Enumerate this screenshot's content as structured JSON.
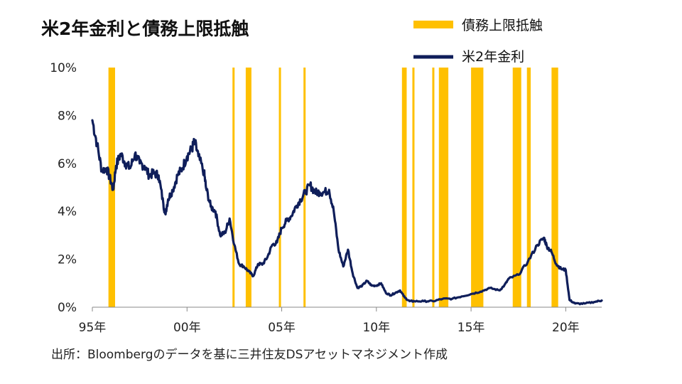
{
  "chart_data": {
    "type": "line",
    "title": "米2年金利と債務上限抵触",
    "legend": [
      {
        "name": "債務上限抵触",
        "kind": "band",
        "color": "#FFC000"
      },
      {
        "name": "米2年金利",
        "kind": "line",
        "color": "#0F1E5A"
      }
    ],
    "legend_position": "top-right",
    "source": "出所：Bloombergのデータを基に三井住友DSアセットマネジメント作成",
    "x_range": [
      1995.0,
      2021.9
    ],
    "x_ticks": [
      {
        "value": 1995,
        "label": "95年"
      },
      {
        "value": 2000,
        "label": "00年"
      },
      {
        "value": 2005,
        "label": "05年"
      },
      {
        "value": 2010,
        "label": "10年"
      },
      {
        "value": 2015,
        "label": "15年"
      },
      {
        "value": 2020,
        "label": "20年"
      }
    ],
    "y_range": [
      0,
      10
    ],
    "y_ticks": [
      {
        "value": 0,
        "label": "0%"
      },
      {
        "value": 2,
        "label": "2%"
      },
      {
        "value": 4,
        "label": "4%"
      },
      {
        "value": 6,
        "label": "6%"
      },
      {
        "value": 8,
        "label": "8%"
      },
      {
        "value": 10,
        "label": "10%"
      }
    ],
    "grid": false,
    "debt_ceiling_periods": [
      [
        1995.85,
        1996.2
      ],
      [
        2002.4,
        2002.5
      ],
      [
        2003.1,
        2003.4
      ],
      [
        2004.85,
        2004.95
      ],
      [
        2006.15,
        2006.25
      ],
      [
        2011.35,
        2011.6
      ],
      [
        2011.9,
        2011.95
      ],
      [
        2012.95,
        2013.05
      ],
      [
        2013.3,
        2013.8
      ],
      [
        2015.0,
        2015.65
      ],
      [
        2017.2,
        2017.65
      ],
      [
        2017.95,
        2018.15
      ],
      [
        2019.25,
        2019.6
      ]
    ],
    "series": [
      {
        "name": "米2年金利",
        "unit": "%",
        "points": [
          [
            1995.0,
            7.8
          ],
          [
            1995.25,
            6.8
          ],
          [
            1995.5,
            5.7
          ],
          [
            1995.75,
            5.8
          ],
          [
            1996.0,
            5.2
          ],
          [
            1996.1,
            4.9
          ],
          [
            1996.25,
            5.9
          ],
          [
            1996.5,
            6.4
          ],
          [
            1996.75,
            6.0
          ],
          [
            1997.0,
            5.8
          ],
          [
            1997.25,
            6.4
          ],
          [
            1997.5,
            6.0
          ],
          [
            1997.75,
            5.9
          ],
          [
            1998.0,
            5.5
          ],
          [
            1998.25,
            5.6
          ],
          [
            1998.5,
            5.5
          ],
          [
            1998.75,
            4.3
          ],
          [
            1998.85,
            3.9
          ],
          [
            1999.0,
            4.5
          ],
          [
            1999.25,
            4.9
          ],
          [
            1999.5,
            5.5
          ],
          [
            1999.75,
            5.8
          ],
          [
            2000.0,
            6.3
          ],
          [
            2000.25,
            6.6
          ],
          [
            2000.4,
            6.9
          ],
          [
            2000.6,
            6.3
          ],
          [
            2000.9,
            5.6
          ],
          [
            2001.0,
            5.0
          ],
          [
            2001.25,
            4.2
          ],
          [
            2001.5,
            4.0
          ],
          [
            2001.75,
            3.0
          ],
          [
            2002.0,
            3.1
          ],
          [
            2002.25,
            3.7
          ],
          [
            2002.5,
            2.6
          ],
          [
            2002.75,
            1.8
          ],
          [
            2003.0,
            1.7
          ],
          [
            2003.25,
            1.5
          ],
          [
            2003.5,
            1.3
          ],
          [
            2003.75,
            1.8
          ],
          [
            2004.0,
            1.8
          ],
          [
            2004.25,
            2.1
          ],
          [
            2004.5,
            2.6
          ],
          [
            2004.75,
            2.7
          ],
          [
            2005.0,
            3.3
          ],
          [
            2005.25,
            3.6
          ],
          [
            2005.5,
            3.8
          ],
          [
            2005.75,
            4.2
          ],
          [
            2006.0,
            4.5
          ],
          [
            2006.25,
            4.8
          ],
          [
            2006.5,
            5.1
          ],
          [
            2006.75,
            4.8
          ],
          [
            2007.0,
            4.8
          ],
          [
            2007.25,
            4.8
          ],
          [
            2007.5,
            4.9
          ],
          [
            2007.75,
            4.0
          ],
          [
            2008.0,
            2.4
          ],
          [
            2008.25,
            1.7
          ],
          [
            2008.5,
            2.4
          ],
          [
            2008.75,
            1.4
          ],
          [
            2009.0,
            0.8
          ],
          [
            2009.25,
            0.9
          ],
          [
            2009.5,
            1.1
          ],
          [
            2009.75,
            0.9
          ],
          [
            2010.0,
            0.9
          ],
          [
            2010.25,
            1.0
          ],
          [
            2010.5,
            0.6
          ],
          [
            2010.75,
            0.5
          ],
          [
            2011.0,
            0.6
          ],
          [
            2011.25,
            0.7
          ],
          [
            2011.5,
            0.4
          ],
          [
            2011.75,
            0.25
          ],
          [
            2012.0,
            0.25
          ],
          [
            2012.5,
            0.25
          ],
          [
            2013.0,
            0.25
          ],
          [
            2013.5,
            0.35
          ],
          [
            2014.0,
            0.35
          ],
          [
            2014.5,
            0.45
          ],
          [
            2015.0,
            0.55
          ],
          [
            2015.5,
            0.65
          ],
          [
            2016.0,
            0.8
          ],
          [
            2016.5,
            0.7
          ],
          [
            2016.75,
            0.9
          ],
          [
            2017.0,
            1.2
          ],
          [
            2017.5,
            1.35
          ],
          [
            2018.0,
            1.9
          ],
          [
            2018.5,
            2.6
          ],
          [
            2018.85,
            2.9
          ],
          [
            2019.0,
            2.55
          ],
          [
            2019.25,
            2.3
          ],
          [
            2019.5,
            1.8
          ],
          [
            2019.75,
            1.6
          ],
          [
            2020.0,
            1.55
          ],
          [
            2020.2,
            0.3
          ],
          [
            2020.5,
            0.15
          ],
          [
            2021.0,
            0.15
          ],
          [
            2021.5,
            0.22
          ],
          [
            2021.9,
            0.28
          ]
        ]
      }
    ]
  }
}
